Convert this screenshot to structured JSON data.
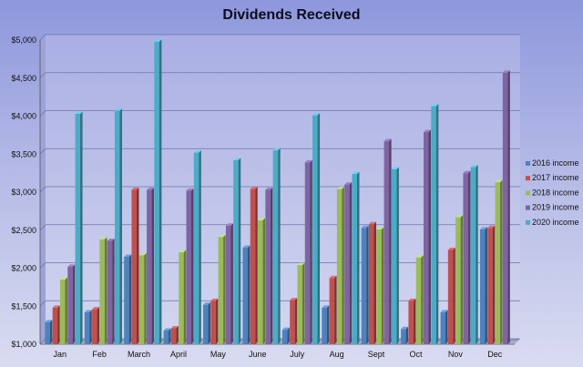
{
  "chart_data": {
    "type": "bar",
    "title": "Dividends Received",
    "xlabel": "",
    "ylabel": "",
    "categories": [
      "Jan",
      "Feb",
      "March",
      "April",
      "May",
      "June",
      "July",
      "Aug",
      "Sept",
      "Oct",
      "Nov",
      "Dec"
    ],
    "ylim": [
      1000,
      5000
    ],
    "yticks": [
      "$1,000",
      "$1,500",
      "$2,000",
      "$2,500",
      "$3,000",
      "$3,500",
      "$4,000",
      "$4,500",
      "$5,000"
    ],
    "grid": true,
    "legend_position": "right",
    "series": [
      {
        "name": "2016 income",
        "color": "#4f81bd",
        "values": [
          1290,
          1420,
          2150,
          1180,
          1520,
          2270,
          1190,
          1480,
          2530,
          1200,
          1420,
          2510
        ]
      },
      {
        "name": "2017 income",
        "color": "#c0504d",
        "values": [
          1480,
          1460,
          3030,
          1210,
          1570,
          3040,
          1580,
          1870,
          2580,
          1570,
          2240,
          2530
        ]
      },
      {
        "name": "2018 income",
        "color": "#9bbb59",
        "values": [
          1850,
          2380,
          2170,
          2210,
          2410,
          2630,
          2040,
          3040,
          2510,
          2140,
          2670,
          3130
        ]
      },
      {
        "name": "2019 income",
        "color": "#8064a2",
        "values": [
          2020,
          2360,
          3030,
          3020,
          2560,
          3030,
          3390,
          3100,
          3670,
          3790,
          3250,
          4570
        ]
      },
      {
        "name": "2020 income",
        "color": "#4bacc6",
        "values": [
          4030,
          4070,
          4980,
          3520,
          3420,
          3550,
          4010,
          3240,
          3300,
          4130,
          3330,
          null
        ]
      }
    ]
  }
}
